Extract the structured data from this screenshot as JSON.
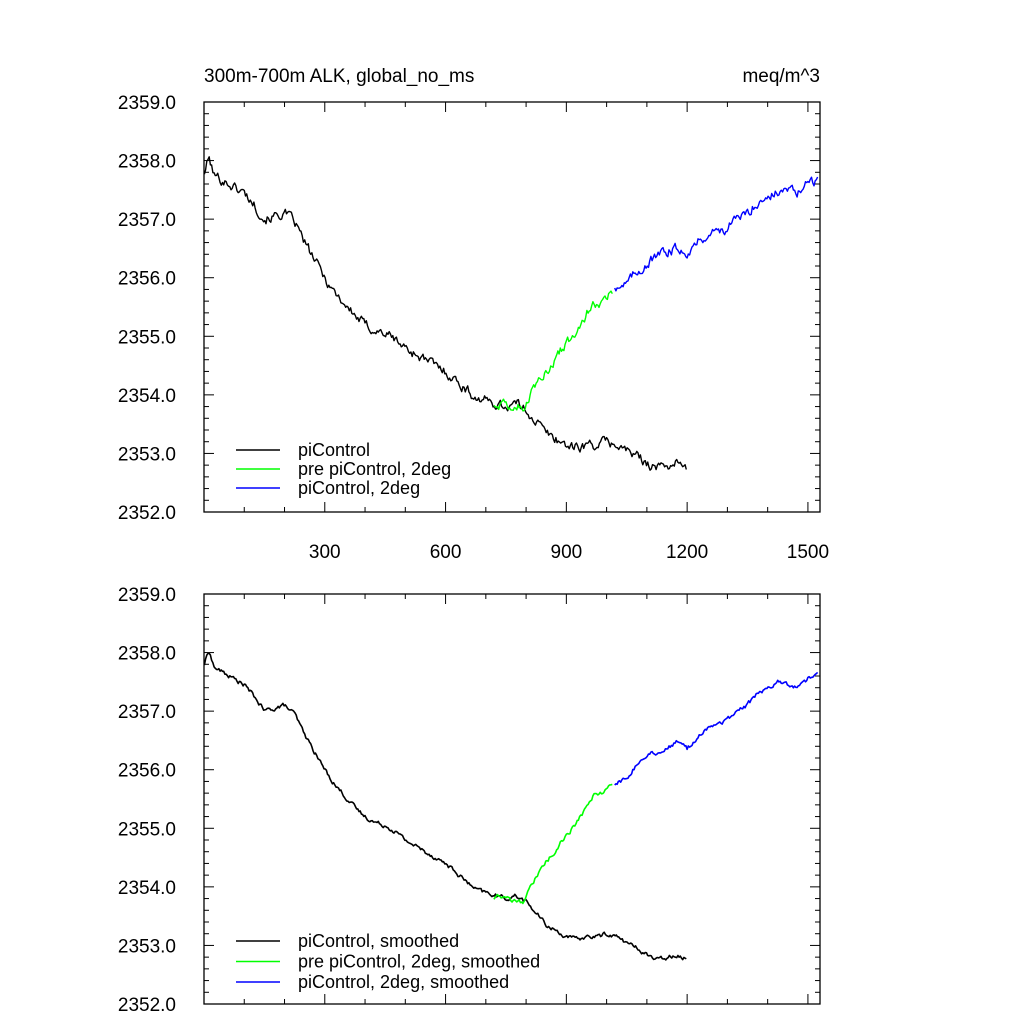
{
  "chart_data": [
    {
      "type": "line",
      "title": "300m-700m ALK, global_no_ms",
      "units": "meq/m^3",
      "xlim": [
        0,
        1530
      ],
      "ylim": [
        2352.0,
        2359.0
      ],
      "x_ticks": [
        300,
        600,
        900,
        1200,
        1500
      ],
      "x_tick_labels": [
        "300",
        "600",
        "900",
        "1200",
        "1500"
      ],
      "y_ticks": [
        2352.0,
        2353.0,
        2354.0,
        2355.0,
        2356.0,
        2357.0,
        2358.0,
        2359.0
      ],
      "y_tick_labels": [
        "2352.0",
        "2353.0",
        "2354.0",
        "2355.0",
        "2356.0",
        "2357.0",
        "2358.0",
        "2359.0"
      ],
      "legend": {
        "position": "bottom-left",
        "entries": [
          "piControl",
          "pre piControl, 2deg",
          "piControl, 2deg"
        ]
      },
      "series": [
        {
          "name": "piControl",
          "color": "#000000",
          "noise": 0.09,
          "x": [
            1,
            12,
            25,
            50,
            75,
            100,
            125,
            150,
            175,
            200,
            225,
            250,
            275,
            300,
            325,
            350,
            375,
            400,
            425,
            450,
            475,
            500,
            525,
            550,
            575,
            600,
            625,
            650,
            675,
            700,
            725,
            750,
            775,
            800,
            825,
            850,
            875,
            900,
            925,
            950,
            975,
            1000,
            1025,
            1050,
            1075,
            1100,
            1125,
            1150,
            1175,
            1200
          ],
          "y": [
            2357.8,
            2358.05,
            2357.75,
            2357.65,
            2357.55,
            2357.45,
            2357.25,
            2357.0,
            2357.05,
            2357.1,
            2356.95,
            2356.6,
            2356.3,
            2356.0,
            2355.75,
            2355.55,
            2355.35,
            2355.2,
            2355.1,
            2355.05,
            2354.95,
            2354.8,
            2354.7,
            2354.6,
            2354.5,
            2354.4,
            2354.25,
            2354.1,
            2353.95,
            2353.9,
            2353.85,
            2353.8,
            2353.85,
            2353.75,
            2353.55,
            2353.35,
            2353.25,
            2353.15,
            2353.1,
            2353.15,
            2353.15,
            2353.2,
            2353.15,
            2353.05,
            2352.95,
            2352.85,
            2352.75,
            2352.8,
            2352.85,
            2352.7
          ]
        },
        {
          "name": "pre piControl, 2deg",
          "color": "#00ff00",
          "noise": 0.09,
          "x": [
            720,
            745,
            770,
            795,
            815,
            840,
            865,
            890,
            915,
            940,
            965,
            990,
            1015
          ],
          "y": [
            2353.85,
            2353.85,
            2353.8,
            2353.8,
            2354.05,
            2354.35,
            2354.55,
            2354.8,
            2355.0,
            2355.25,
            2355.55,
            2355.6,
            2355.8
          ]
        },
        {
          "name": "piControl, 2deg",
          "color": "#0000ff",
          "noise": 0.09,
          "x": [
            1020,
            1050,
            1075,
            1100,
            1125,
            1150,
            1175,
            1200,
            1225,
            1250,
            1275,
            1300,
            1325,
            1350,
            1375,
            1400,
            1425,
            1450,
            1475,
            1500,
            1525
          ],
          "y": [
            2355.85,
            2355.9,
            2356.1,
            2356.25,
            2356.35,
            2356.45,
            2356.5,
            2356.45,
            2356.6,
            2356.75,
            2356.8,
            2356.85,
            2357.0,
            2357.1,
            2357.3,
            2357.4,
            2357.45,
            2357.5,
            2357.45,
            2357.6,
            2357.65
          ]
        }
      ]
    },
    {
      "type": "line",
      "xlim": [
        0,
        1530
      ],
      "ylim": [
        2352.0,
        2359.0
      ],
      "x_ticks": [
        300,
        600,
        900,
        1200,
        1500
      ],
      "y_ticks": [
        2352.0,
        2353.0,
        2354.0,
        2355.0,
        2356.0,
        2357.0,
        2358.0,
        2359.0
      ],
      "y_tick_labels": [
        "2352.0",
        "2353.0",
        "2354.0",
        "2355.0",
        "2356.0",
        "2357.0",
        "2358.0",
        "2359.0"
      ],
      "legend": {
        "position": "bottom-left",
        "entries": [
          "piControl, smoothed",
          "pre piControl, 2deg, smoothed",
          "piControl, 2deg, smoothed"
        ]
      },
      "series": [
        {
          "name": "piControl, smoothed",
          "color": "#000000",
          "noise": 0.04,
          "x": [
            1,
            12,
            25,
            50,
            75,
            100,
            125,
            150,
            175,
            200,
            225,
            250,
            275,
            300,
            325,
            350,
            375,
            400,
            425,
            450,
            475,
            500,
            525,
            550,
            575,
            600,
            625,
            650,
            675,
            700,
            725,
            750,
            775,
            800,
            825,
            850,
            875,
            900,
            925,
            950,
            975,
            1000,
            1025,
            1050,
            1075,
            1100,
            1125,
            1150,
            1175,
            1200
          ],
          "y": [
            2357.8,
            2358.05,
            2357.75,
            2357.65,
            2357.55,
            2357.45,
            2357.25,
            2357.0,
            2357.05,
            2357.1,
            2356.95,
            2356.6,
            2356.3,
            2356.0,
            2355.75,
            2355.55,
            2355.35,
            2355.2,
            2355.1,
            2355.05,
            2354.95,
            2354.8,
            2354.7,
            2354.6,
            2354.5,
            2354.4,
            2354.25,
            2354.1,
            2353.95,
            2353.9,
            2353.85,
            2353.8,
            2353.85,
            2353.75,
            2353.55,
            2353.35,
            2353.25,
            2353.15,
            2353.1,
            2353.15,
            2353.15,
            2353.2,
            2353.15,
            2353.05,
            2352.95,
            2352.85,
            2352.75,
            2352.8,
            2352.85,
            2352.75
          ]
        },
        {
          "name": "pre piControl, 2deg, smoothed",
          "color": "#00ff00",
          "noise": 0.04,
          "x": [
            720,
            745,
            770,
            795,
            815,
            840,
            865,
            890,
            915,
            940,
            965,
            990,
            1015
          ],
          "y": [
            2353.8,
            2353.85,
            2353.75,
            2353.75,
            2354.05,
            2354.35,
            2354.55,
            2354.8,
            2355.0,
            2355.25,
            2355.55,
            2355.6,
            2355.75
          ]
        },
        {
          "name": "piControl, 2deg, smoothed",
          "color": "#0000ff",
          "noise": 0.04,
          "x": [
            1020,
            1050,
            1075,
            1100,
            1125,
            1150,
            1175,
            1200,
            1225,
            1250,
            1275,
            1300,
            1325,
            1350,
            1375,
            1400,
            1425,
            1450,
            1475,
            1500,
            1525
          ],
          "y": [
            2355.75,
            2355.85,
            2356.1,
            2356.25,
            2356.3,
            2356.35,
            2356.5,
            2356.35,
            2356.55,
            2356.7,
            2356.8,
            2356.85,
            2357.0,
            2357.1,
            2357.3,
            2357.4,
            2357.5,
            2357.45,
            2357.4,
            2357.55,
            2357.65
          ]
        }
      ]
    }
  ]
}
